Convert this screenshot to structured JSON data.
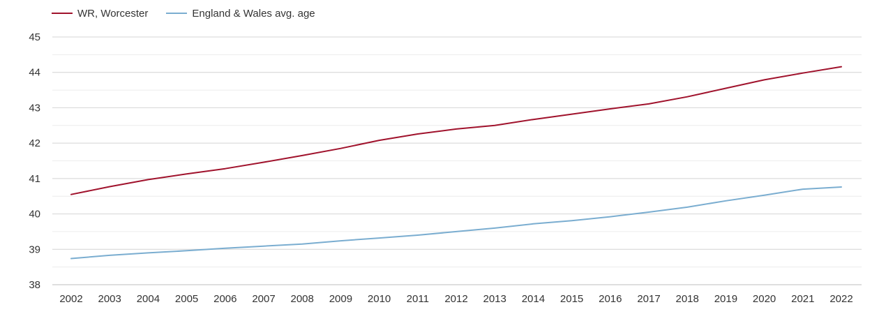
{
  "chart_data": {
    "type": "line",
    "title": "",
    "xlabel": "",
    "ylabel": "",
    "categories": [
      "2002",
      "2003",
      "2004",
      "2005",
      "2006",
      "2007",
      "2008",
      "2009",
      "2010",
      "2011",
      "2012",
      "2013",
      "2014",
      "2015",
      "2016",
      "2017",
      "2018",
      "2019",
      "2020",
      "2021",
      "2022"
    ],
    "ylim": [
      38,
      45
    ],
    "yticks": [
      "38",
      "39",
      "40",
      "41",
      "42",
      "43",
      "44",
      "45"
    ],
    "grid": true,
    "legend_position": "top-left",
    "series": [
      {
        "name": "WR, Worcester",
        "color": "#a0122c",
        "values": [
          40.55,
          40.77,
          40.97,
          41.13,
          41.28,
          41.46,
          41.65,
          41.85,
          42.08,
          42.26,
          42.4,
          42.5,
          42.67,
          42.82,
          42.97,
          43.11,
          43.31,
          43.55,
          43.79,
          43.98,
          44.16
        ]
      },
      {
        "name": "England & Wales avg. age",
        "color": "#7aadd0",
        "values": [
          38.74,
          38.83,
          38.9,
          38.96,
          39.03,
          39.09,
          39.15,
          39.24,
          39.32,
          39.4,
          39.5,
          39.6,
          39.72,
          39.81,
          39.92,
          40.05,
          40.19,
          40.37,
          40.53,
          40.7,
          40.76
        ]
      }
    ]
  }
}
